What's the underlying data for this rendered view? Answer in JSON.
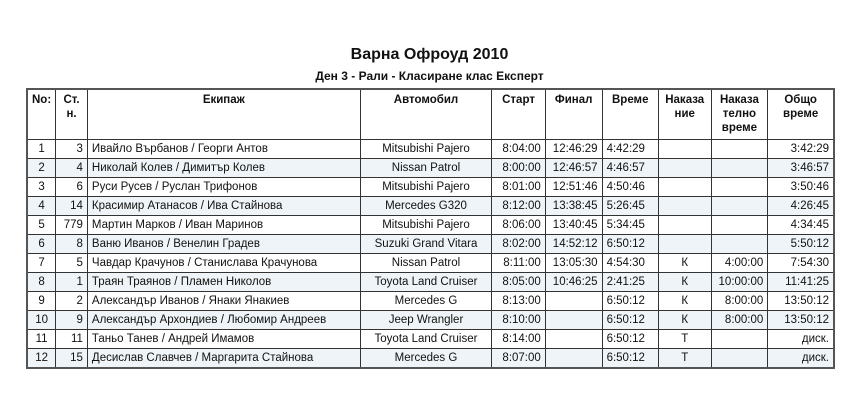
{
  "title": "Варна Офроуд 2010",
  "subtitle": "Ден 3  - Рали - Класиране клас Експерт",
  "columns": [
    "No:",
    "Ст. н.",
    "Екипаж",
    "Автомобил",
    "Старт",
    "Финал",
    "Време",
    "Наказа ние",
    "Наказа телно време",
    "Общо време"
  ],
  "rows": [
    [
      "1",
      "3",
      "Ивайло Върбанов / Георги Антов",
      "Mitsubishi Pajero",
      "8:04:00",
      "12:46:29",
      "4:42:29",
      "",
      "",
      "3:42:29"
    ],
    [
      "2",
      "4",
      "Николай Колев / Димитър Колев",
      "Nissan Patrol",
      "8:00:00",
      "12:46:57",
      "4:46:57",
      "",
      "",
      "3:46:57"
    ],
    [
      "3",
      "6",
      "Руси Русев / Руслан Трифонов",
      "Mitsubishi Pajero",
      "8:01:00",
      "12:51:46",
      "4:50:46",
      "",
      "",
      "3:50:46"
    ],
    [
      "4",
      "14",
      "Красимир Атанасов / Ива Стайнова",
      "Mercedes G320",
      "8:12:00",
      "13:38:45",
      "5:26:45",
      "",
      "",
      "4:26:45"
    ],
    [
      "5",
      "779",
      "Мартин Марков / Иван Маринов",
      "Mitsubishi Pajero",
      "8:06:00",
      "13:40:45",
      "5:34:45",
      "",
      "",
      "4:34:45"
    ],
    [
      "6",
      "8",
      "Ваню Иванов / Венелин Градев",
      "Suzuki Grand Vitara",
      "8:02:00",
      "14:52:12",
      "6:50:12",
      "",
      "",
      "5:50:12"
    ],
    [
      "7",
      "5",
      "Чавдар Крачунов / Станислава Крачунова",
      "Nissan Patrol",
      "8:11:00",
      "13:05:30",
      "4:54:30",
      "К",
      "4:00:00",
      "7:54:30"
    ],
    [
      "8",
      "1",
      "Траян Траянов / Пламен Николов",
      "Toyota Land Cruiser",
      "8:05:00",
      "10:46:25",
      "2:41:25",
      "К",
      "10:00:00",
      "11:41:25"
    ],
    [
      "9",
      "2",
      "Александър Иванов / Янаки Янакиев",
      "Mercedes G",
      "8:13:00",
      "",
      "6:50:12",
      "К",
      "8:00:00",
      "13:50:12"
    ],
    [
      "10",
      "9",
      "Александър Архондиев / Любомир Андреев",
      "Jeep Wrangler",
      "8:10:00",
      "",
      "6:50:12",
      "К",
      "8:00:00",
      "13:50:12"
    ],
    [
      "11",
      "11",
      "Таньо Танев / Андрей Имамов",
      "Toyota Land Cruiser",
      "8:14:00",
      "",
      "6:50:12",
      "Т",
      "",
      "диск."
    ],
    [
      "12",
      "15",
      "Десислав Славчев / Маргарита Стайнова",
      "Mercedes G",
      "8:07:00",
      "",
      "6:50:12",
      "Т",
      "",
      "диск."
    ]
  ]
}
